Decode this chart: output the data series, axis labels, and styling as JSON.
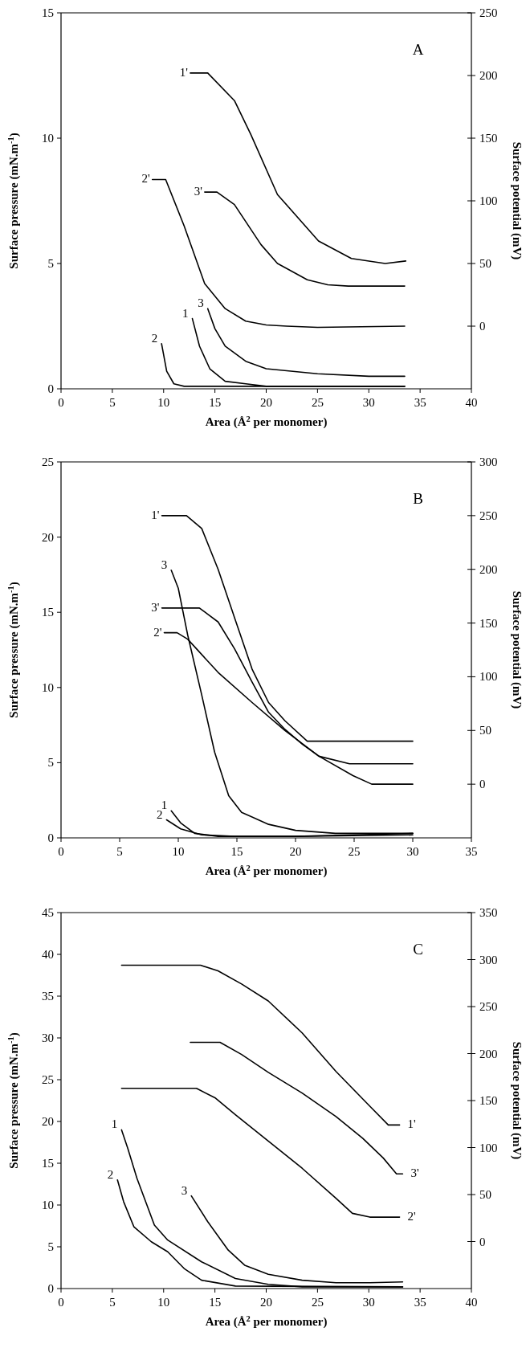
{
  "chart_data": [
    {
      "type": "line",
      "title": "A",
      "xlabel": "Area (Å$^{2}$ per monomer)",
      "ylabel": "Surface pressure (mN.m$^{-1}$)",
      "y2label": "Surface potential (mV)",
      "xlim": [
        0,
        40
      ],
      "xticks": [
        0,
        5,
        10,
        15,
        20,
        25,
        30,
        35,
        40
      ],
      "ylim": [
        0,
        15
      ],
      "yticks": [
        0,
        5,
        10,
        15
      ],
      "y2lim": [
        -50,
        250
      ],
      "y2ticks": [
        0,
        50,
        100,
        150,
        200,
        250
      ],
      "grid": false,
      "series": [
        {
          "name": "1",
          "color": "#000000",
          "x": [
            12.8,
            13.5,
            14.5,
            16,
            18,
            20,
            25,
            30,
            33.5
          ],
          "values": [
            2.8,
            1.7,
            0.8,
            0.3,
            0.2,
            0.1,
            0.1,
            0.1,
            0.1
          ]
        },
        {
          "name": "2",
          "color": "#000000",
          "x": [
            9.8,
            10.3,
            11,
            12,
            14,
            20,
            33.5
          ],
          "values": [
            1.8,
            0.7,
            0.2,
            0.1,
            0.1,
            0.1,
            0.1
          ]
        },
        {
          "name": "3",
          "color": "#000000",
          "x": [
            14.3,
            15,
            16,
            18,
            20,
            25,
            30,
            33.5
          ],
          "values": [
            3.2,
            2.4,
            1.7,
            1.1,
            0.8,
            0.6,
            0.5,
            0.5
          ]
        },
        {
          "name": "1'",
          "color": "#000000",
          "axis": "y2",
          "x": [
            12.6,
            14.3,
            16.9,
            18.5,
            21.1,
            25.1,
            28.3,
            31.6,
            33.6
          ],
          "values": [
            202,
            202,
            180,
            153,
            105,
            68,
            54,
            50,
            52
          ]
        },
        {
          "name": "2'",
          "color": "#000000",
          "axis": "y2",
          "x": [
            8.9,
            10.2,
            12,
            14,
            16,
            18,
            20,
            22,
            25,
            33.5
          ],
          "values": [
            117,
            117,
            80,
            34,
            14,
            4,
            1,
            0,
            -1,
            0
          ]
        },
        {
          "name": "3'",
          "color": "#000000",
          "axis": "y2",
          "x": [
            14,
            15.2,
            16.9,
            19.5,
            21.1,
            22,
            24,
            26,
            28,
            33.5
          ],
          "values": [
            107,
            107,
            97,
            65,
            50,
            46,
            37,
            33,
            32,
            32
          ]
        }
      ]
    },
    {
      "type": "line",
      "title": "B",
      "xlabel": "Area (Å$^{2}$ per monomer)",
      "ylabel": "Surface pressure (mN.m$^{-1}$)",
      "y2label": "Surface potential (mV)",
      "xlim": [
        0,
        35
      ],
      "xticks": [
        0,
        5,
        10,
        15,
        20,
        25,
        30,
        35
      ],
      "ylim": [
        0,
        25
      ],
      "yticks": [
        0,
        5,
        10,
        15,
        20,
        25
      ],
      "y2lim": [
        -50,
        300
      ],
      "y2ticks": [
        0,
        50,
        100,
        150,
        200,
        250,
        300
      ],
      "grid": false,
      "series": [
        {
          "name": "1",
          "color": "#000000",
          "x": [
            9.4,
            10.2,
            11.4,
            13.4,
            20,
            25,
            30
          ],
          "values": [
            1.8,
            1.0,
            0.3,
            0.1,
            0.1,
            0.2,
            0.3
          ]
        },
        {
          "name": "2",
          "color": "#000000",
          "x": [
            9,
            10.2,
            12,
            14.8,
            20,
            30
          ],
          "values": [
            1.2,
            0.6,
            0.2,
            0.1,
            0.1,
            0.2
          ]
        },
        {
          "name": "3",
          "color": "#000000",
          "x": [
            9.4,
            10,
            10.8,
            12,
            13.1,
            14.3,
            15.4,
            17.7,
            20,
            23.4,
            30
          ],
          "values": [
            17.8,
            16.6,
            13.5,
            9.5,
            5.7,
            2.8,
            1.7,
            0.9,
            0.5,
            0.3,
            0.3
          ]
        },
        {
          "name": "1'",
          "color": "#000000",
          "axis": "y2",
          "x": [
            8.6,
            10.7,
            12,
            13.4,
            14.8,
            16.3,
            17.7,
            19.1,
            21,
            30
          ],
          "values": [
            250,
            250,
            238,
            200,
            155,
            107,
            76,
            59,
            40,
            40
          ]
        },
        {
          "name": "2'",
          "color": "#000000",
          "axis": "y2",
          "x": [
            8.8,
            9.9,
            10.8,
            13.4,
            16.3,
            19.1,
            22,
            24.9,
            26.5,
            30
          ],
          "values": [
            141,
            141,
            135,
            104,
            76,
            50,
            26,
            8,
            0,
            0
          ]
        },
        {
          "name": "3'",
          "color": "#000000",
          "axis": "y2",
          "x": [
            8.6,
            11.8,
            13.4,
            14.8,
            16.3,
            17.7,
            19.1,
            20.6,
            22,
            24.6,
            30
          ],
          "values": [
            164,
            164,
            151,
            126,
            95,
            67,
            51,
            37,
            26,
            19,
            19
          ]
        }
      ]
    },
    {
      "type": "line",
      "title": "C",
      "xlabel": "Area (Å$^{2}$ per monomer)",
      "ylabel": "Surface pressure (mN.m$^{-1}$)",
      "y2label": "Surface potential (mV)",
      "xlim": [
        0,
        40
      ],
      "xticks": [
        0,
        5,
        10,
        15,
        20,
        25,
        30,
        35,
        40
      ],
      "ylim": [
        0,
        45
      ],
      "yticks": [
        0,
        5,
        10,
        15,
        20,
        25,
        30,
        35,
        40,
        45
      ],
      "y2lim": [
        -50,
        350
      ],
      "y2ticks": [
        0,
        50,
        100,
        150,
        200,
        250,
        300,
        350
      ],
      "grid": false,
      "series": [
        {
          "name": "1",
          "color": "#000000",
          "x": [
            5.9,
            6.5,
            7.4,
            9.1,
            10.4,
            13.7,
            17,
            20.2,
            23.5,
            33.3
          ],
          "values": [
            19,
            16.8,
            13.2,
            7.6,
            5.8,
            3.2,
            1.2,
            0.5,
            0.2,
            0.2
          ]
        },
        {
          "name": "2",
          "color": "#000000",
          "x": [
            5.5,
            6.1,
            7.1,
            8.8,
            10.4,
            12,
            13.7,
            17,
            33.3
          ],
          "values": [
            13,
            10.4,
            7.4,
            5.6,
            4.4,
            2.4,
            1.0,
            0.3,
            0.2
          ]
        },
        {
          "name": "3",
          "color": "#000000",
          "x": [
            12.7,
            14.3,
            16.3,
            17.9,
            20.2,
            23.5,
            26.8,
            30.1,
            33.3
          ],
          "values": [
            11.1,
            8,
            4.6,
            2.8,
            1.7,
            1.0,
            0.7,
            0.7,
            0.8
          ]
        },
        {
          "name": "1'",
          "color": "#000000",
          "axis": "y2",
          "x": [
            33,
            31.9,
            30.1,
            26.8,
            23.5,
            20.2,
            17.6,
            15.3,
            13.6,
            5.9
          ],
          "values": [
            124,
            124,
            144,
            181,
            222,
            256,
            274,
            288,
            294,
            294
          ]
        },
        {
          "name": "2'",
          "color": "#000000",
          "axis": "y2",
          "x": [
            33,
            30.1,
            28.4,
            26.8,
            23.5,
            20.2,
            17,
            15,
            13.2,
            5.9
          ],
          "values": [
            26,
            26,
            30,
            46,
            78,
            107,
            135,
            153,
            163,
            163
          ]
        },
        {
          "name": "3'",
          "color": "#000000",
          "axis": "y2",
          "x": [
            33.3,
            32.7,
            31.4,
            29.4,
            26.8,
            23.5,
            20.2,
            17.6,
            15.5,
            12.6
          ],
          "values": [
            72,
            72,
            89,
            110,
            133,
            158,
            180,
            199,
            212,
            212
          ]
        }
      ]
    }
  ]
}
